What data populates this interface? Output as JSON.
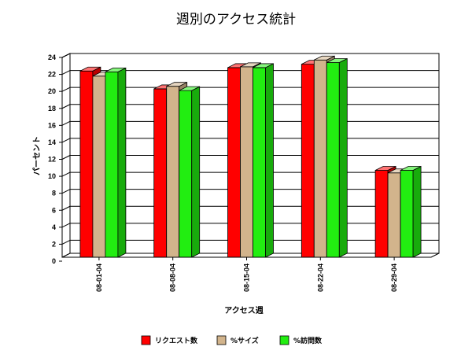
{
  "chart_data": {
    "type": "bar",
    "title": "週別のアクセス統計",
    "xlabel": "アクセス週",
    "ylabel": "パーセント",
    "categories": [
      "08-01-04",
      "08-08-04",
      "08-15-04",
      "08-22-04",
      "08-29-04"
    ],
    "ylim": [
      0,
      24
    ],
    "yticks": [
      0,
      2,
      4,
      6,
      8,
      10,
      12,
      14,
      16,
      18,
      20,
      22,
      24
    ],
    "grid": true,
    "legend_position": "bottom",
    "series": [
      {
        "name": "リクエスト数",
        "color": "#ff0000",
        "values": [
          22.4,
          20.3,
          22.8,
          23.2,
          10.7
        ]
      },
      {
        "name": "%サイズ",
        "color": "#d2b48c",
        "values": [
          21.8,
          20.6,
          22.9,
          23.7,
          10.4
        ]
      },
      {
        "name": "%訪問数",
        "color": "#22ee11",
        "values": [
          22.3,
          20.1,
          22.8,
          23.4,
          10.7
        ]
      }
    ]
  }
}
